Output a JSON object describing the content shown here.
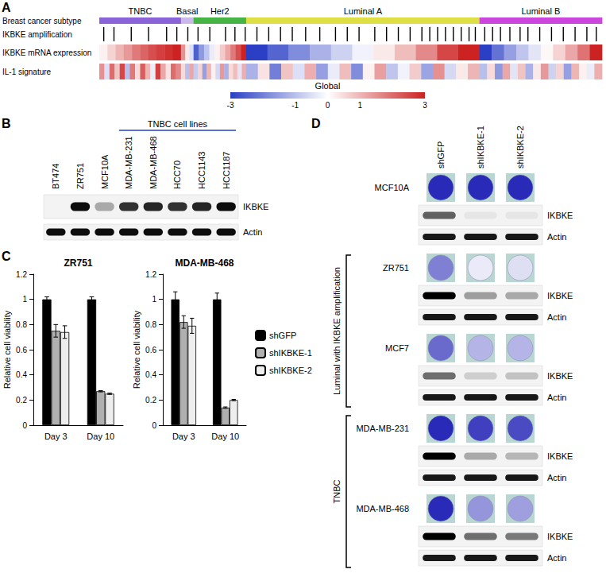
{
  "panel_labels": [
    "A",
    "B",
    "C",
    "D"
  ],
  "panel_a": {
    "rows": [
      "Breast cancer subtype",
      "IKBKE amplification",
      "IKBKE mRNA expression",
      "IL-1 signature"
    ],
    "subtypes": [
      {
        "name": "TNBC",
        "color": "#8a63d8",
        "samples": 104,
        "expression": [
          0.2,
          0.6,
          1.0,
          1.4,
          1.8,
          2.1,
          2.4,
          2.6,
          2.8,
          3
        ],
        "il1": [
          1.5,
          -0.5,
          2,
          0.8,
          2.5,
          -1,
          1.8,
          0.5,
          2.2,
          1,
          -0.3,
          2.6,
          1.2,
          0.4,
          2,
          1.6
        ]
      },
      {
        "name": "Basal",
        "color": "#c9b9ea",
        "samples": 16,
        "expression": [
          1.5,
          0.3,
          -0.5
        ],
        "il1": [
          0.5,
          -1,
          1.2
        ]
      },
      {
        "name": "Her2",
        "color": "#45b445",
        "samples": 67,
        "expression": [
          -2.5,
          -1.6,
          -0.9,
          -0.3,
          0.2,
          0.7,
          1.2,
          1.8,
          2.4,
          3
        ],
        "il1": [
          -0.8,
          0.6,
          -1.5,
          1,
          0.2,
          -0.6,
          1.4,
          -1.2,
          0.5,
          0.9,
          -0.4,
          1.1
        ]
      },
      {
        "name": "Luminal A",
        "color": "#dede45",
        "samples": 297,
        "expression": [
          -3,
          -2.4,
          -1.8,
          -1.2,
          -0.7,
          -0.2,
          0.3,
          0.9,
          1.6,
          2.5,
          3
        ],
        "il1": [
          -1.2,
          0.4,
          -2,
          0.8,
          -0.5,
          1.1,
          -1.5,
          -0.3,
          0.9,
          -1.8,
          0.2,
          1.3,
          -0.9,
          -0.2,
          0.7,
          -1.4,
          1.5,
          -0.6,
          0.3,
          1
        ]
      },
      {
        "name": "Luminal B",
        "color": "#cc45dc",
        "samples": 156,
        "expression": [
          -3,
          -2.2,
          -1.5,
          -0.9,
          -0.4,
          0.1,
          0.6,
          1.2,
          1.9,
          3
        ],
        "il1": [
          -1,
          0.5,
          -1.6,
          1.2,
          -0.4,
          0.8,
          -1.2,
          0.3,
          1.4,
          -0.7,
          0.6,
          -1.5,
          1,
          0.2,
          -0.3,
          1.1
        ]
      }
    ],
    "amplification_samples": [
      5,
      18,
      40,
      62,
      85,
      98,
      112,
      125,
      140,
      160,
      172,
      185,
      200,
      215,
      230,
      245,
      262,
      280,
      300,
      315,
      330,
      350,
      365,
      380,
      395,
      410,
      420,
      430,
      440,
      450,
      460,
      470,
      478,
      490,
      500,
      510,
      522,
      535,
      545,
      560,
      575,
      590,
      605,
      620,
      632
    ],
    "colorbar": {
      "label": "Global",
      "range": [
        -3,
        3
      ],
      "ticks": [
        -3,
        -1,
        0,
        1,
        3
      ],
      "colors": [
        "#2b3fc4",
        "#ffffff",
        "#cc2222"
      ]
    }
  },
  "panel_b": {
    "lanes": [
      "BT474",
      "ZR751",
      "MCF10A",
      "MDA-MB-231",
      "MDA-MB-468",
      "HCC70",
      "HCC1143",
      "HCC1187"
    ],
    "group": {
      "label": "TNBC cell lines",
      "lanes": [
        "MDA-MB-231",
        "MDA-MB-468",
        "HCC70",
        "HCC1143",
        "HCC1187"
      ]
    },
    "blots": [
      {
        "name": "IKBKE",
        "intensity": [
          0,
          0.95,
          0.3,
          0.8,
          0.85,
          0.8,
          0.85,
          0.95
        ]
      },
      {
        "name": "Actin",
        "intensity": [
          0.95,
          0.95,
          0.95,
          0.95,
          0.95,
          0.95,
          0.95,
          0.95
        ]
      }
    ]
  },
  "chart_data": [
    {
      "type": "bar",
      "title": "ZR751",
      "categories": [
        "Day 3",
        "Day 10"
      ],
      "series": [
        {
          "name": "shGFP",
          "color": "#000000",
          "values": [
            1,
            1
          ],
          "errors": [
            0.02,
            0.02
          ]
        },
        {
          "name": "shIKBKE-1",
          "color": "#b0b0b0",
          "values": [
            0.75,
            0.27
          ],
          "errors": [
            0.05,
            0.005
          ]
        },
        {
          "name": "shIKBKE-2",
          "color": "#eeeeee",
          "values": [
            0.74,
            0.25
          ],
          "errors": [
            0.05,
            0.005
          ]
        }
      ],
      "ylim": [
        0,
        1.2
      ],
      "yticks": [
        0,
        0.2,
        0.4,
        0.6,
        0.8,
        1,
        1.2
      ],
      "ylabel": "Relative cell viability",
      "grid": false
    },
    {
      "type": "bar",
      "title": "MDA-MB-468",
      "categories": [
        "Day 3",
        "Day 10"
      ],
      "series": [
        {
          "name": "shGFP",
          "color": "#000000",
          "values": [
            1,
            1
          ],
          "errors": [
            0.06,
            0.05
          ]
        },
        {
          "name": "shIKBKE-1",
          "color": "#b0b0b0",
          "values": [
            0.82,
            0.14
          ],
          "errors": [
            0.05,
            0.005
          ]
        },
        {
          "name": "shIKBKE-2",
          "color": "#eeeeee",
          "values": [
            0.79,
            0.2
          ],
          "errors": [
            0.06,
            0.005
          ]
        }
      ],
      "ylim": [
        0,
        1.2
      ],
      "yticks": [
        0,
        0.2,
        0.4,
        0.6,
        0.8,
        1,
        1.2
      ],
      "ylabel": "Relative cell viability",
      "grid": false,
      "legend": "right"
    }
  ],
  "panel_d": {
    "columns": [
      "shGFP",
      "shIKBKE-1",
      "shIKBKE-2"
    ],
    "blot_labels": [
      "IKBKE",
      "Actin"
    ],
    "groups": [
      {
        "label": "Luminal with IKBKE amplification",
        "rows": [
          "ZR751",
          "MCF7"
        ]
      },
      {
        "label": "TNBC",
        "rows": [
          "MDA-MB-231",
          "MDA-MB-468"
        ]
      }
    ],
    "cell_lines": [
      {
        "name": "MCF10A",
        "colony": [
          1,
          1,
          1
        ],
        "IKBKE": [
          0.6,
          0.05,
          0.05
        ],
        "Actin": [
          0.9,
          0.9,
          0.9
        ]
      },
      {
        "name": "ZR751",
        "colony": [
          0.6,
          0.1,
          0.15
        ],
        "IKBKE": [
          1,
          0.35,
          0.3
        ],
        "Actin": [
          0.9,
          0.9,
          0.9
        ]
      },
      {
        "name": "MCF7",
        "colony": [
          0.7,
          0.35,
          0.35
        ],
        "IKBKE": [
          0.55,
          0.15,
          0.2
        ],
        "Actin": [
          0.9,
          0.9,
          0.9
        ]
      },
      {
        "name": "MDA-MB-231",
        "colony": [
          1,
          0.9,
          0.85
        ],
        "IKBKE": [
          1,
          0.3,
          0.25
        ],
        "Actin": [
          0.9,
          0.9,
          0.9
        ]
      },
      {
        "name": "MDA-MB-468",
        "colony": [
          1,
          0.5,
          0.45
        ],
        "IKBKE": [
          1,
          0.55,
          0.5
        ],
        "Actin": [
          0.9,
          0.9,
          0.9
        ]
      }
    ]
  }
}
